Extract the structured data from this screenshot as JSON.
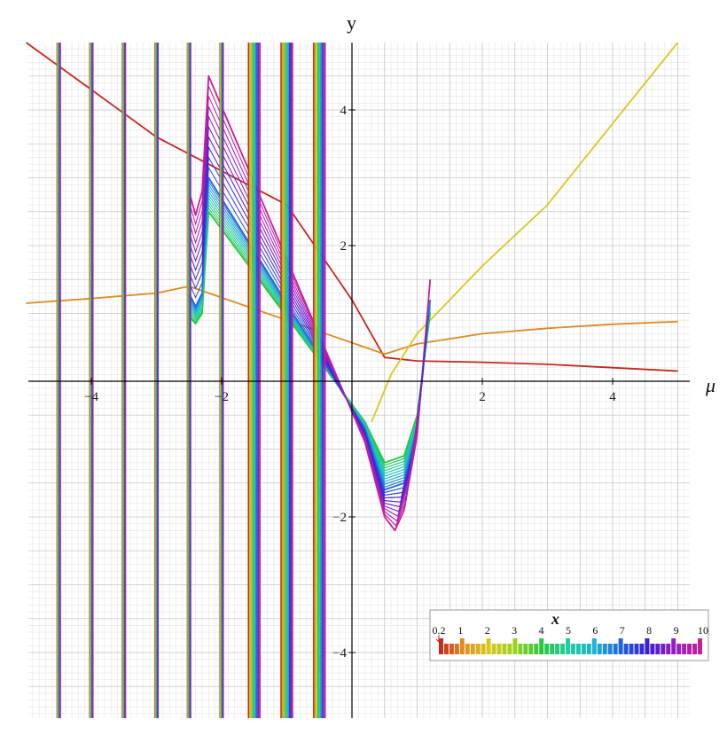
{
  "chart_data": {
    "type": "line",
    "xlabel": "μ",
    "ylabel": "y",
    "xlim": [
      -5.1,
      5.3
    ],
    "ylim": [
      -5.0,
      5.0
    ],
    "x_ticks": [
      -4,
      -2,
      2,
      4
    ],
    "y_ticks": [
      -4,
      -2,
      2,
      4
    ],
    "x_tick_labels": [
      "−4",
      "−2",
      "2",
      "4"
    ],
    "y_tick_labels": [
      "−4",
      "−2",
      "2",
      "4"
    ],
    "grid": true,
    "legend": {
      "title": "x",
      "placement": "bottom-right",
      "type": "colorbar",
      "tick_labels": [
        "0.2",
        "1",
        "2",
        "3",
        "4",
        "5",
        "6",
        "7",
        "8",
        "9",
        "10"
      ],
      "tick_values": [
        0.2,
        1,
        2,
        3,
        4,
        5,
        6,
        7,
        8,
        9,
        10
      ],
      "colors": [
        "#c8281e",
        "#e08a1e",
        "#d8c81e",
        "#9ad21e",
        "#28c83c",
        "#1ecfa0",
        "#1eb4d2",
        "#1e64dc",
        "#3c1ed2",
        "#961ec8",
        "#c81e96"
      ]
    },
    "vertical_asymptotes": [
      -4.5,
      -4.0,
      -3.5,
      -3.0,
      -2.5,
      -2.0,
      -1.5,
      -1.0,
      -0.5
    ],
    "series": [
      {
        "x_param": 0.2,
        "color": "#c8281e",
        "x": [
          -5,
          -4,
          -3,
          -2,
          -1,
          0,
          0.5,
          1,
          2,
          3,
          4,
          5
        ],
        "y": [
          5.4,
          4.3,
          3.6,
          3.1,
          2.6,
          1.2,
          0.35,
          0.3,
          0.28,
          0.25,
          0.2,
          0.15
        ]
      },
      {
        "x_param": 1,
        "color": "#e08a1e",
        "x": [
          -5,
          -4,
          -3,
          -2.5,
          0.5,
          1,
          2,
          3,
          4,
          5
        ],
        "y": [
          1.15,
          1.22,
          1.3,
          1.4,
          0.4,
          0.55,
          0.7,
          0.78,
          0.84,
          0.88
        ]
      },
      {
        "x_param": 2,
        "color": "#d8c81e",
        "x": [
          0.3,
          0.6,
          1,
          1.5,
          2,
          3,
          4,
          5
        ],
        "y": [
          -0.6,
          0.1,
          0.7,
          1.2,
          1.7,
          2.6,
          3.8,
          5.0
        ]
      },
      {
        "x_param": 4,
        "color": "#28c83c",
        "x": [
          -2.5,
          -2.4,
          -2.3,
          -2.2,
          0.2,
          0.5,
          0.8,
          1.0,
          1.2
        ],
        "y": [
          0.95,
          0.85,
          1.0,
          2.5,
          -0.6,
          -1.2,
          -1.1,
          -0.5,
          1.0
        ]
      },
      {
        "x_param": 7,
        "color": "#1e64dc",
        "x": [
          -2.5,
          -2.4,
          -2.3,
          -2.2,
          0.2,
          0.5,
          0.8,
          1.0,
          1.2
        ],
        "y": [
          1.3,
          1.1,
          1.3,
          3.0,
          -0.7,
          -1.6,
          -1.5,
          -0.7,
          1.2
        ]
      },
      {
        "x_param": 10,
        "color": "#c81e96",
        "x": [
          -2.5,
          -2.4,
          -2.3,
          -2.2,
          0.2,
          0.5,
          0.66,
          0.8,
          1.0,
          1.2
        ],
        "y": [
          2.8,
          2.45,
          2.8,
          4.5,
          -0.9,
          -2.0,
          -2.2,
          -1.9,
          -0.8,
          1.5
        ]
      }
    ]
  }
}
